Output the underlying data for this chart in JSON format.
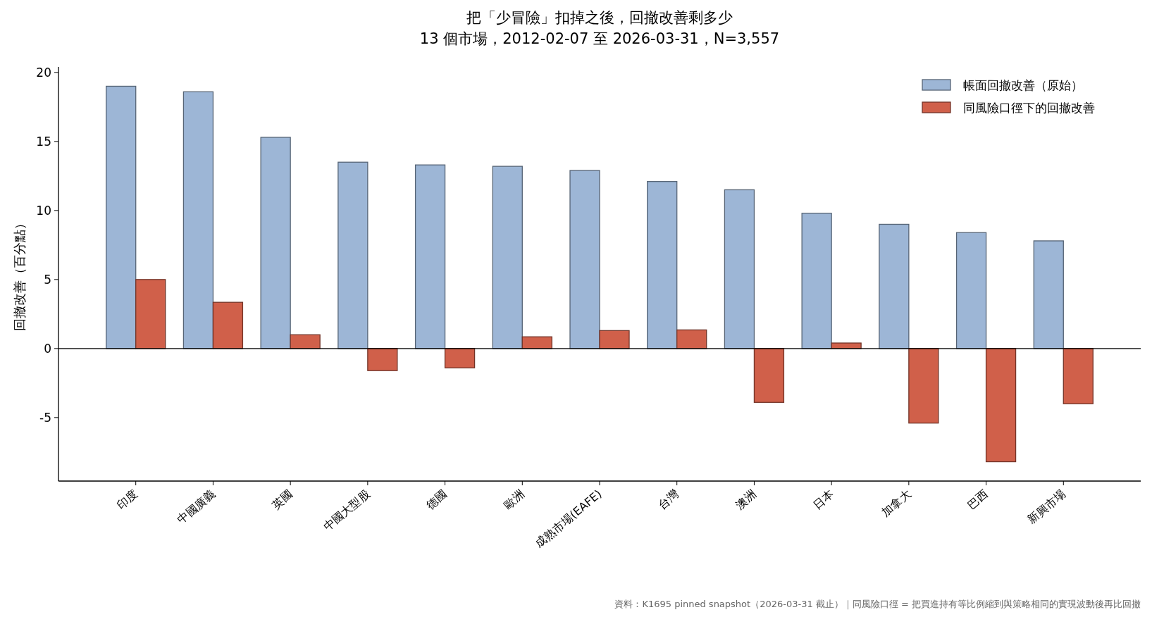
{
  "chart_data": {
    "type": "bar",
    "title": "把「少冒險」扣掉之後，回撤改善剩多少",
    "subtitle": "13 個市場，2012-02-07 至 2026-03-31，N=3,557",
    "ylabel": "回撤改善（百分點）",
    "categories": [
      "印度",
      "中國廣義",
      "英國",
      "中國大型股",
      "德國",
      "歐洲",
      "成熟市場(EAFE)",
      "台灣",
      "澳洲",
      "日本",
      "加拿大",
      "巴西",
      "新興市場"
    ],
    "series": [
      {
        "name": "帳面回撤改善（原始）",
        "color": "#9db6d6",
        "values": [
          19.0,
          18.6,
          15.3,
          13.5,
          13.3,
          13.2,
          12.9,
          12.1,
          11.5,
          9.8,
          9.0,
          8.4,
          7.8
        ]
      },
      {
        "name": "同風險口徑下的回撤改善",
        "color": "#d0604a",
        "values": [
          5.0,
          3.35,
          1.0,
          -1.6,
          -1.4,
          0.85,
          1.3,
          1.35,
          -3.9,
          0.4,
          -5.4,
          -8.2,
          -4.0
        ]
      }
    ],
    "ylim": [
      -9.6,
      20.4
    ],
    "yticks": [
      -5,
      0,
      5,
      10,
      15,
      20
    ],
    "ref_lines": [
      {
        "axis": "y",
        "value": 0,
        "color": "#000000"
      }
    ],
    "legend": "top right",
    "grid": false,
    "annotations": [
      "資料：K1695 pinned snapshot（2026-03-31 截止）｜同風險口徑 = 把買進持有等比例縮到與策略相同的實現波動後再比回撤"
    ]
  }
}
